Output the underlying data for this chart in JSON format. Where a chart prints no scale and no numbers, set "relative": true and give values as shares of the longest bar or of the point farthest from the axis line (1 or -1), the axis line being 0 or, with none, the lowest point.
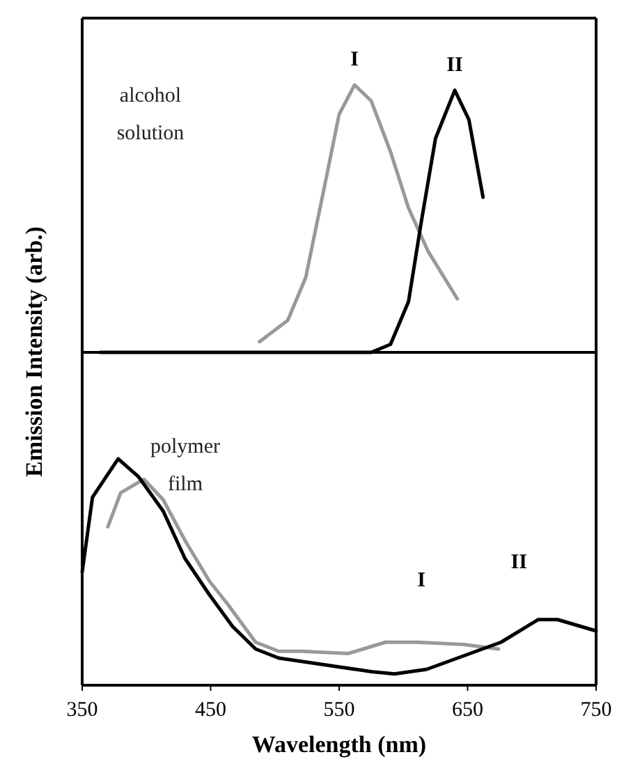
{
  "chart_data": [
    {
      "type": "line",
      "ylabel": "Emission Intensity (arb.)",
      "relative": true,
      "xlim": [
        350,
        750
      ],
      "tick_labels": false,
      "annotations": [
        "alcohol solution"
      ],
      "series": [
        {
          "name": "I",
          "color": "#999999",
          "x": [
            488,
            510,
            524,
            539,
            550,
            562,
            575,
            590,
            604,
            619,
            642
          ],
          "values": [
            0.04,
            0.12,
            0.28,
            0.63,
            0.89,
            1.0,
            0.94,
            0.75,
            0.54,
            0.38,
            0.2
          ]
        },
        {
          "name": "II",
          "color": "#000000",
          "x": [
            364,
            450,
            540,
            575,
            590,
            604,
            614,
            625,
            640,
            651,
            662
          ],
          "values": [
            0,
            0,
            0,
            0,
            0.03,
            0.19,
            0.49,
            0.8,
            0.98,
            0.87,
            0.58
          ]
        }
      ]
    },
    {
      "type": "line",
      "xlabel": "Wavelength (nm)",
      "relative": true,
      "xlim": [
        350,
        750
      ],
      "xticks": [
        350,
        450,
        550,
        650,
        750
      ],
      "tick_labels": "x",
      "annotations": [
        "polymer film"
      ],
      "series": [
        {
          "name": "I",
          "color": "#999999",
          "x": [
            370,
            380,
            398,
            413,
            430,
            449,
            463,
            485,
            503,
            521,
            557,
            586,
            611,
            647,
            674
          ],
          "values": [
            0.7,
            0.85,
            0.91,
            0.82,
            0.64,
            0.46,
            0.36,
            0.19,
            0.15,
            0.15,
            0.14,
            0.19,
            0.19,
            0.18,
            0.16
          ]
        },
        {
          "name": "II",
          "color": "#000000",
          "x": [
            350,
            358,
            378,
            394,
            413,
            430,
            449,
            467,
            485,
            503,
            539,
            575,
            593,
            618,
            647,
            676,
            705,
            720,
            750
          ],
          "values": [
            0.5,
            0.83,
            1.0,
            0.92,
            0.77,
            0.56,
            0.4,
            0.26,
            0.16,
            0.12,
            0.09,
            0.06,
            0.05,
            0.07,
            0.13,
            0.19,
            0.29,
            0.29,
            0.24
          ]
        }
      ]
    }
  ]
}
